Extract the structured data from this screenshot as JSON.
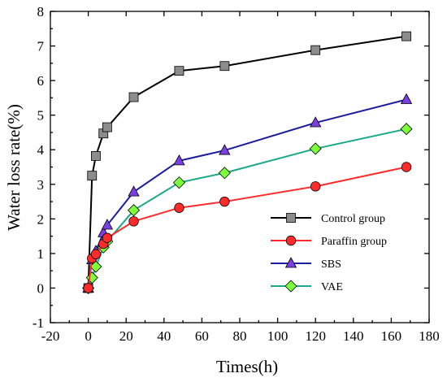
{
  "chart_data": {
    "type": "line",
    "title": "",
    "xlabel": "Times(h)",
    "ylabel": "Water loss rate(%)",
    "xlim": [
      -20,
      180
    ],
    "ylim": [
      -1,
      8
    ],
    "xticks": [
      -20,
      0,
      20,
      40,
      60,
      80,
      100,
      120,
      140,
      160,
      180
    ],
    "yticks": [
      -1,
      0,
      1,
      2,
      3,
      4,
      5,
      6,
      7,
      8
    ],
    "grid": false,
    "legend_position": "lower-right",
    "series": [
      {
        "name": "Control group",
        "marker": "square",
        "line_color": "#000000",
        "marker_color": "#8c8c8c",
        "x": [
          0,
          2,
          4,
          8,
          10,
          24,
          48,
          72,
          120,
          168
        ],
        "y": [
          0,
          3.25,
          3.82,
          4.47,
          4.65,
          5.52,
          6.28,
          6.42,
          6.88,
          7.28
        ]
      },
      {
        "name": "Paraffin group",
        "marker": "circle",
        "line_color": "#ff2a2a",
        "marker_color": "#ff2a2a",
        "x": [
          0,
          2,
          4,
          8,
          10,
          24,
          48,
          72,
          120,
          168
        ],
        "y": [
          0,
          0.86,
          0.98,
          1.28,
          1.45,
          1.93,
          2.32,
          2.5,
          2.94,
          3.5
        ]
      },
      {
        "name": "SBS",
        "marker": "triangle",
        "line_color": "#1c1c9e",
        "marker_color": "#7b3fe0",
        "x": [
          0,
          2,
          4,
          8,
          10,
          24,
          48,
          72,
          120,
          168
        ],
        "y": [
          0,
          0.82,
          1.07,
          1.6,
          1.82,
          2.78,
          3.68,
          3.98,
          4.78,
          5.45
        ]
      },
      {
        "name": "VAE",
        "marker": "diamond",
        "line_color": "#1aa88a",
        "marker_color": "#7dff3a",
        "x": [
          0,
          2,
          4,
          8,
          10,
          24,
          48,
          72,
          120,
          168
        ],
        "y": [
          0,
          0.3,
          0.62,
          1.18,
          1.35,
          2.25,
          3.05,
          3.33,
          4.03,
          4.6
        ]
      }
    ]
  }
}
